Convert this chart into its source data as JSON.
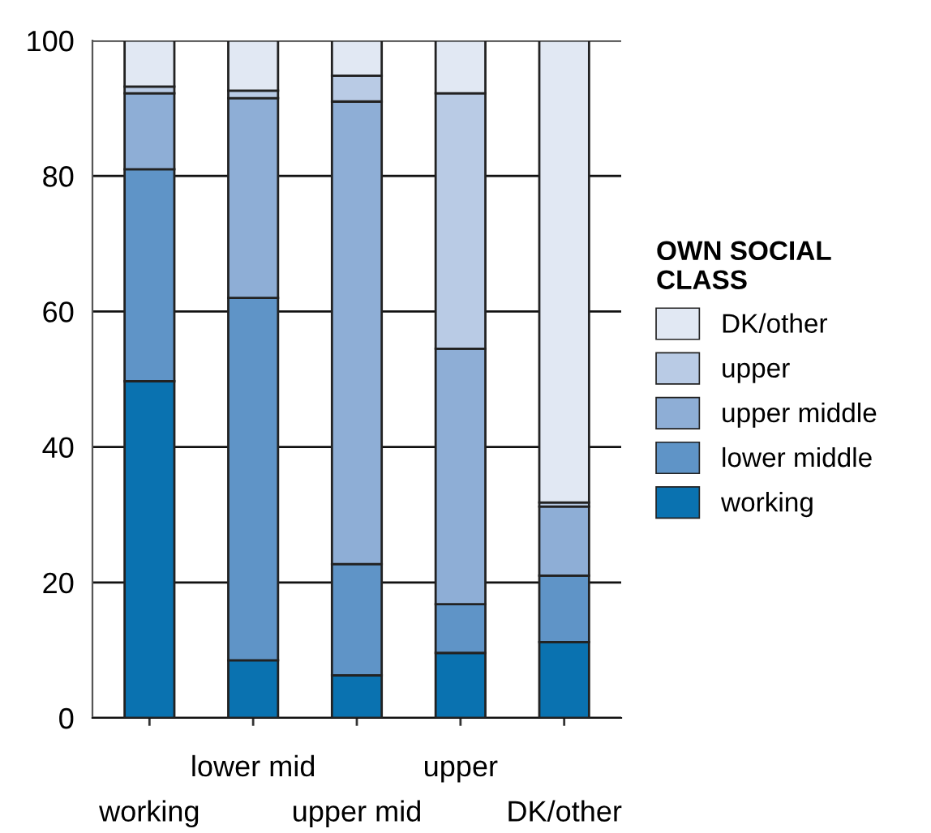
{
  "chart_data": {
    "type": "bar",
    "stacked": true,
    "categories": [
      "working",
      "lower mid",
      "upper mid",
      "upper",
      "DK/other"
    ],
    "series": [
      {
        "name": "working",
        "color": "#0a72b0",
        "values": [
          49.7,
          8.5,
          6.3,
          9.6,
          11.2
        ]
      },
      {
        "name": "lower middle",
        "color": "#5f94c7",
        "values": [
          31.3,
          53.5,
          16.4,
          7.2,
          9.8
        ]
      },
      {
        "name": "upper middle",
        "color": "#8eaed6",
        "values": [
          11.2,
          29.5,
          68.3,
          37.7,
          10.2
        ]
      },
      {
        "name": "upper",
        "color": "#b9cbe5",
        "values": [
          1.0,
          1.1,
          3.8,
          37.7,
          0.6
        ]
      },
      {
        "name": "DK/other",
        "color": "#e1e8f3",
        "values": [
          6.8,
          7.4,
          5.2,
          7.8,
          68.2
        ]
      }
    ],
    "ylim": [
      0,
      100
    ],
    "yticks": [
      0,
      20,
      40,
      60,
      80,
      100
    ],
    "grid": "y",
    "legend": "right",
    "legend_title": "OWN SOCIAL\nCLASS"
  }
}
